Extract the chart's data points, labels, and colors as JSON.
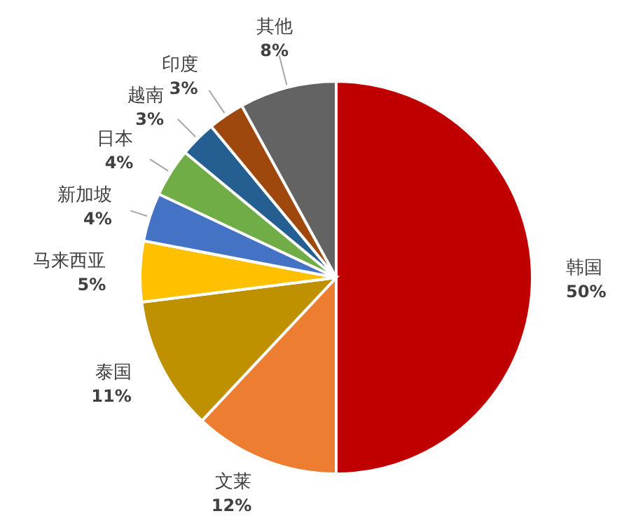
{
  "chart_data": {
    "type": "pie",
    "categories": [
      "韩国",
      "文莱",
      "泰国",
      "马来西亚",
      "新加坡",
      "日本",
      "越南",
      "印度",
      "其他"
    ],
    "values": [
      50,
      12,
      11,
      5,
      4,
      4,
      3,
      3,
      8
    ],
    "value_labels": [
      "50%",
      "12%",
      "11%",
      "5%",
      "4%",
      "4%",
      "3%",
      "3%",
      "8%"
    ],
    "colors": [
      "#c00000",
      "#ed7d31",
      "#bf9000",
      "#ffc000",
      "#4472c4",
      "#70ad47",
      "#255e91",
      "#9e480e",
      "#636363"
    ]
  }
}
